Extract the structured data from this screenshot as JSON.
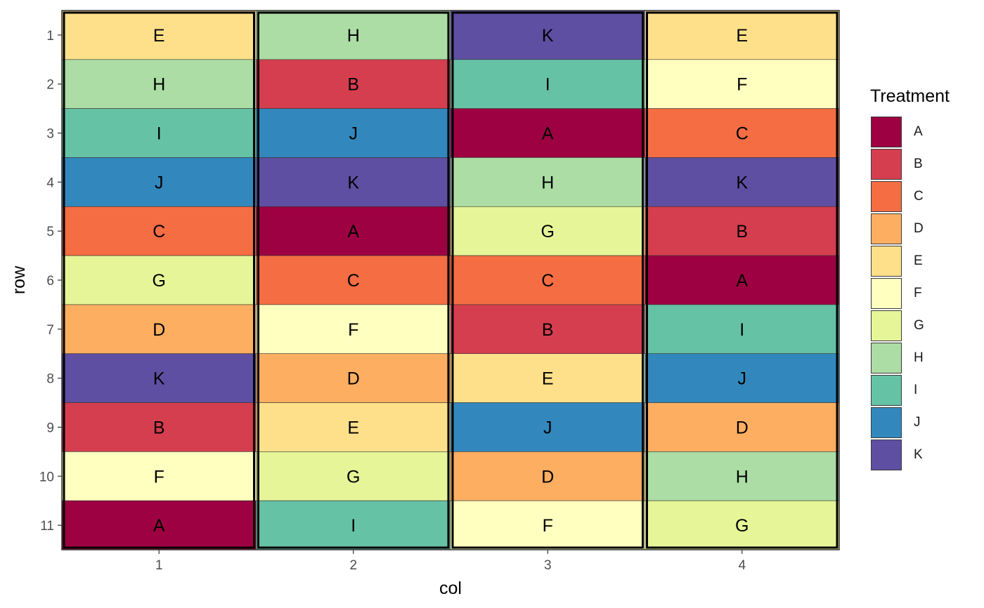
{
  "chart_data": {
    "type": "heatmap",
    "xlabel": "col",
    "ylabel": "row",
    "x_ticks": [
      "1",
      "2",
      "3",
      "4"
    ],
    "y_ticks": [
      "1",
      "2",
      "3",
      "4",
      "5",
      "6",
      "7",
      "8",
      "9",
      "10",
      "11"
    ],
    "xlim": [
      0.5,
      4.5
    ],
    "ylim": [
      11.5,
      0.5
    ],
    "y_reversed": true,
    "grid": false,
    "legend": {
      "title": "Treatment",
      "position": "right",
      "entries": [
        {
          "label": "A",
          "color": "#9E0142"
        },
        {
          "label": "B",
          "color": "#D53E4F"
        },
        {
          "label": "C",
          "color": "#F46D43"
        },
        {
          "label": "D",
          "color": "#FDAE61"
        },
        {
          "label": "E",
          "color": "#FEE08B"
        },
        {
          "label": "F",
          "color": "#FFFFBF"
        },
        {
          "label": "G",
          "color": "#E6F598"
        },
        {
          "label": "H",
          "color": "#ABDDA4"
        },
        {
          "label": "I",
          "color": "#66C2A5"
        },
        {
          "label": "J",
          "color": "#3288BD"
        },
        {
          "label": "K",
          "color": "#5E4FA2"
        }
      ]
    },
    "columns": [
      {
        "col": 1,
        "treatments": [
          "E",
          "H",
          "I",
          "J",
          "C",
          "G",
          "D",
          "K",
          "B",
          "F",
          "A"
        ]
      },
      {
        "col": 2,
        "treatments": [
          "H",
          "B",
          "J",
          "K",
          "A",
          "C",
          "F",
          "D",
          "E",
          "G",
          "I"
        ]
      },
      {
        "col": 3,
        "treatments": [
          "K",
          "I",
          "A",
          "H",
          "G",
          "C",
          "B",
          "E",
          "J",
          "D",
          "F"
        ]
      },
      {
        "col": 4,
        "treatments": [
          "E",
          "F",
          "C",
          "K",
          "B",
          "A",
          "I",
          "J",
          "D",
          "H",
          "G"
        ]
      }
    ]
  }
}
